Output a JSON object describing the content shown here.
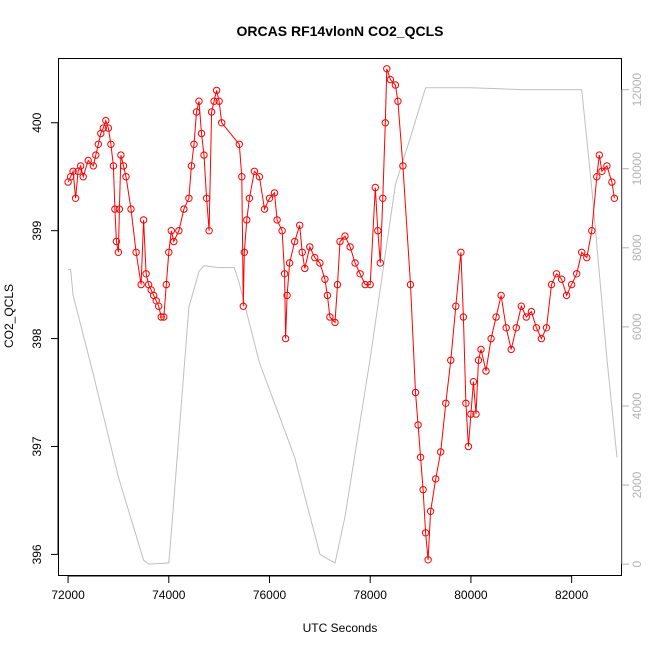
{
  "chart_data": {
    "type": "line",
    "title": "ORCAS RF14vlonN CO2_QCLS",
    "xlabel": "UTC Seconds",
    "ylabel": "CO2_QCLS",
    "xlim": [
      71800,
      83000
    ],
    "ylim": [
      395.8,
      400.6
    ],
    "y2lim": [
      -300,
      12800
    ],
    "x_ticks": [
      72000,
      74000,
      76000,
      78000,
      80000,
      82000
    ],
    "y_ticks": [
      396,
      397,
      398,
      399,
      400
    ],
    "y2_ticks": [
      0,
      2000,
      4000,
      6000,
      8000,
      10000,
      12000
    ],
    "series": [
      {
        "name": "CO2_QCLS",
        "color": "#ff0000",
        "style": "line+points",
        "points": [
          [
            72000,
            399.45
          ],
          [
            72050,
            399.5
          ],
          [
            72100,
            399.55
          ],
          [
            72150,
            399.3
          ],
          [
            72200,
            399.55
          ],
          [
            72250,
            399.6
          ],
          [
            72300,
            399.5
          ],
          [
            72400,
            399.65
          ],
          [
            72500,
            399.6
          ],
          [
            72550,
            399.7
          ],
          [
            72600,
            399.8
          ],
          [
            72650,
            399.9
          ],
          [
            72700,
            399.95
          ],
          [
            72750,
            400.02
          ],
          [
            72800,
            399.95
          ],
          [
            72850,
            399.8
          ],
          [
            72900,
            399.6
          ],
          [
            72930,
            399.2
          ],
          [
            72960,
            398.9
          ],
          [
            73000,
            398.8
          ],
          [
            73020,
            399.2
          ],
          [
            73050,
            399.7
          ],
          [
            73100,
            399.6
          ],
          [
            73150,
            399.5
          ],
          [
            73250,
            399.2
          ],
          [
            73350,
            398.8
          ],
          [
            73450,
            398.5
          ],
          [
            73500,
            399.1
          ],
          [
            73550,
            398.6
          ],
          [
            73600,
            398.5
          ],
          [
            73650,
            398.45
          ],
          [
            73700,
            398.4
          ],
          [
            73750,
            398.35
          ],
          [
            73800,
            398.3
          ],
          [
            73850,
            398.2
          ],
          [
            73900,
            398.2
          ],
          [
            73950,
            398.5
          ],
          [
            74000,
            398.8
          ],
          [
            74050,
            399.0
          ],
          [
            74100,
            398.9
          ],
          [
            74200,
            399.0
          ],
          [
            74300,
            399.2
          ],
          [
            74400,
            399.3
          ],
          [
            74450,
            399.6
          ],
          [
            74500,
            399.8
          ],
          [
            74550,
            400.1
          ],
          [
            74600,
            400.2
          ],
          [
            74650,
            399.9
          ],
          [
            74700,
            399.7
          ],
          [
            74750,
            399.3
          ],
          [
            74800,
            399.0
          ],
          [
            74850,
            400.1
          ],
          [
            74900,
            400.2
          ],
          [
            74950,
            400.3
          ],
          [
            75000,
            400.2
          ],
          [
            75050,
            400.0
          ],
          [
            75400,
            399.8
          ],
          [
            75450,
            399.5
          ],
          [
            75480,
            398.3
          ],
          [
            75500,
            398.8
          ],
          [
            75550,
            399.1
          ],
          [
            75600,
            399.3
          ],
          [
            75700,
            399.55
          ],
          [
            75800,
            399.5
          ],
          [
            75900,
            399.2
          ],
          [
            76000,
            399.3
          ],
          [
            76100,
            399.35
          ],
          [
            76150,
            399.1
          ],
          [
            76250,
            399.0
          ],
          [
            76300,
            398.6
          ],
          [
            76320,
            398.0
          ],
          [
            76350,
            398.4
          ],
          [
            76400,
            398.7
          ],
          [
            76500,
            398.9
          ],
          [
            76600,
            399.05
          ],
          [
            76650,
            398.8
          ],
          [
            76700,
            398.65
          ],
          [
            76800,
            398.85
          ],
          [
            76900,
            398.75
          ],
          [
            77000,
            398.7
          ],
          [
            77100,
            398.55
          ],
          [
            77150,
            398.4
          ],
          [
            77200,
            398.2
          ],
          [
            77300,
            398.15
          ],
          [
            77350,
            398.5
          ],
          [
            77400,
            398.9
          ],
          [
            77500,
            398.95
          ],
          [
            77600,
            398.85
          ],
          [
            77700,
            398.7
          ],
          [
            77800,
            398.6
          ],
          [
            77900,
            398.5
          ],
          [
            78000,
            398.5
          ],
          [
            78100,
            399.4
          ],
          [
            78150,
            399.0
          ],
          [
            78200,
            398.7
          ],
          [
            78250,
            399.3
          ],
          [
            78300,
            400.0
          ],
          [
            78330,
            400.5
          ],
          [
            78400,
            400.4
          ],
          [
            78500,
            400.35
          ],
          [
            78550,
            400.2
          ],
          [
            78650,
            399.6
          ],
          [
            78800,
            398.5
          ],
          [
            78900,
            397.5
          ],
          [
            78950,
            397.2
          ],
          [
            79000,
            396.9
          ],
          [
            79050,
            396.6
          ],
          [
            79100,
            396.2
          ],
          [
            79150,
            395.95
          ],
          [
            79200,
            396.4
          ],
          [
            79300,
            396.7
          ],
          [
            79400,
            396.95
          ],
          [
            79500,
            397.4
          ],
          [
            79600,
            397.8
          ],
          [
            79700,
            398.3
          ],
          [
            79800,
            398.8
          ],
          [
            79850,
            398.2
          ],
          [
            79900,
            397.4
          ],
          [
            79950,
            397.0
          ],
          [
            80000,
            397.3
          ],
          [
            80050,
            397.6
          ],
          [
            80100,
            397.3
          ],
          [
            80150,
            397.8
          ],
          [
            80200,
            397.9
          ],
          [
            80300,
            397.7
          ],
          [
            80400,
            398.0
          ],
          [
            80500,
            398.2
          ],
          [
            80600,
            398.4
          ],
          [
            80700,
            398.1
          ],
          [
            80800,
            397.9
          ],
          [
            80900,
            398.1
          ],
          [
            81000,
            398.3
          ],
          [
            81100,
            398.2
          ],
          [
            81200,
            398.25
          ],
          [
            81300,
            398.1
          ],
          [
            81400,
            398.0
          ],
          [
            81500,
            398.1
          ],
          [
            81600,
            398.5
          ],
          [
            81700,
            398.6
          ],
          [
            81800,
            398.55
          ],
          [
            81900,
            398.4
          ],
          [
            82000,
            398.5
          ],
          [
            82100,
            398.6
          ],
          [
            82200,
            398.8
          ],
          [
            82300,
            398.75
          ],
          [
            82400,
            399.0
          ],
          [
            82500,
            399.5
          ],
          [
            82550,
            399.7
          ],
          [
            82600,
            399.55
          ],
          [
            82700,
            399.6
          ],
          [
            82800,
            399.45
          ],
          [
            82850,
            399.3
          ]
        ]
      },
      {
        "name": "Altitude",
        "color": "#bfbfbf",
        "style": "line",
        "axis": "right",
        "points": [
          [
            72000,
            7450
          ],
          [
            72050,
            7450
          ],
          [
            72100,
            6800
          ],
          [
            72500,
            4800
          ],
          [
            73000,
            2200
          ],
          [
            73500,
            100
          ],
          [
            73600,
            0
          ],
          [
            74000,
            30
          ],
          [
            74050,
            800
          ],
          [
            74400,
            6500
          ],
          [
            74600,
            7400
          ],
          [
            74700,
            7550
          ],
          [
            75000,
            7500
          ],
          [
            75300,
            7500
          ],
          [
            75400,
            7100
          ],
          [
            75800,
            5100
          ],
          [
            76500,
            2700
          ],
          [
            77000,
            250
          ],
          [
            77200,
            100
          ],
          [
            77300,
            30
          ],
          [
            77500,
            1200
          ],
          [
            78000,
            5200
          ],
          [
            78500,
            9600
          ],
          [
            78800,
            10800
          ],
          [
            79100,
            12050
          ],
          [
            80000,
            12050
          ],
          [
            81000,
            12000
          ],
          [
            82000,
            12000
          ],
          [
            82200,
            12000
          ],
          [
            82400,
            9500
          ],
          [
            82700,
            5200
          ],
          [
            82900,
            2700
          ]
        ]
      }
    ]
  }
}
